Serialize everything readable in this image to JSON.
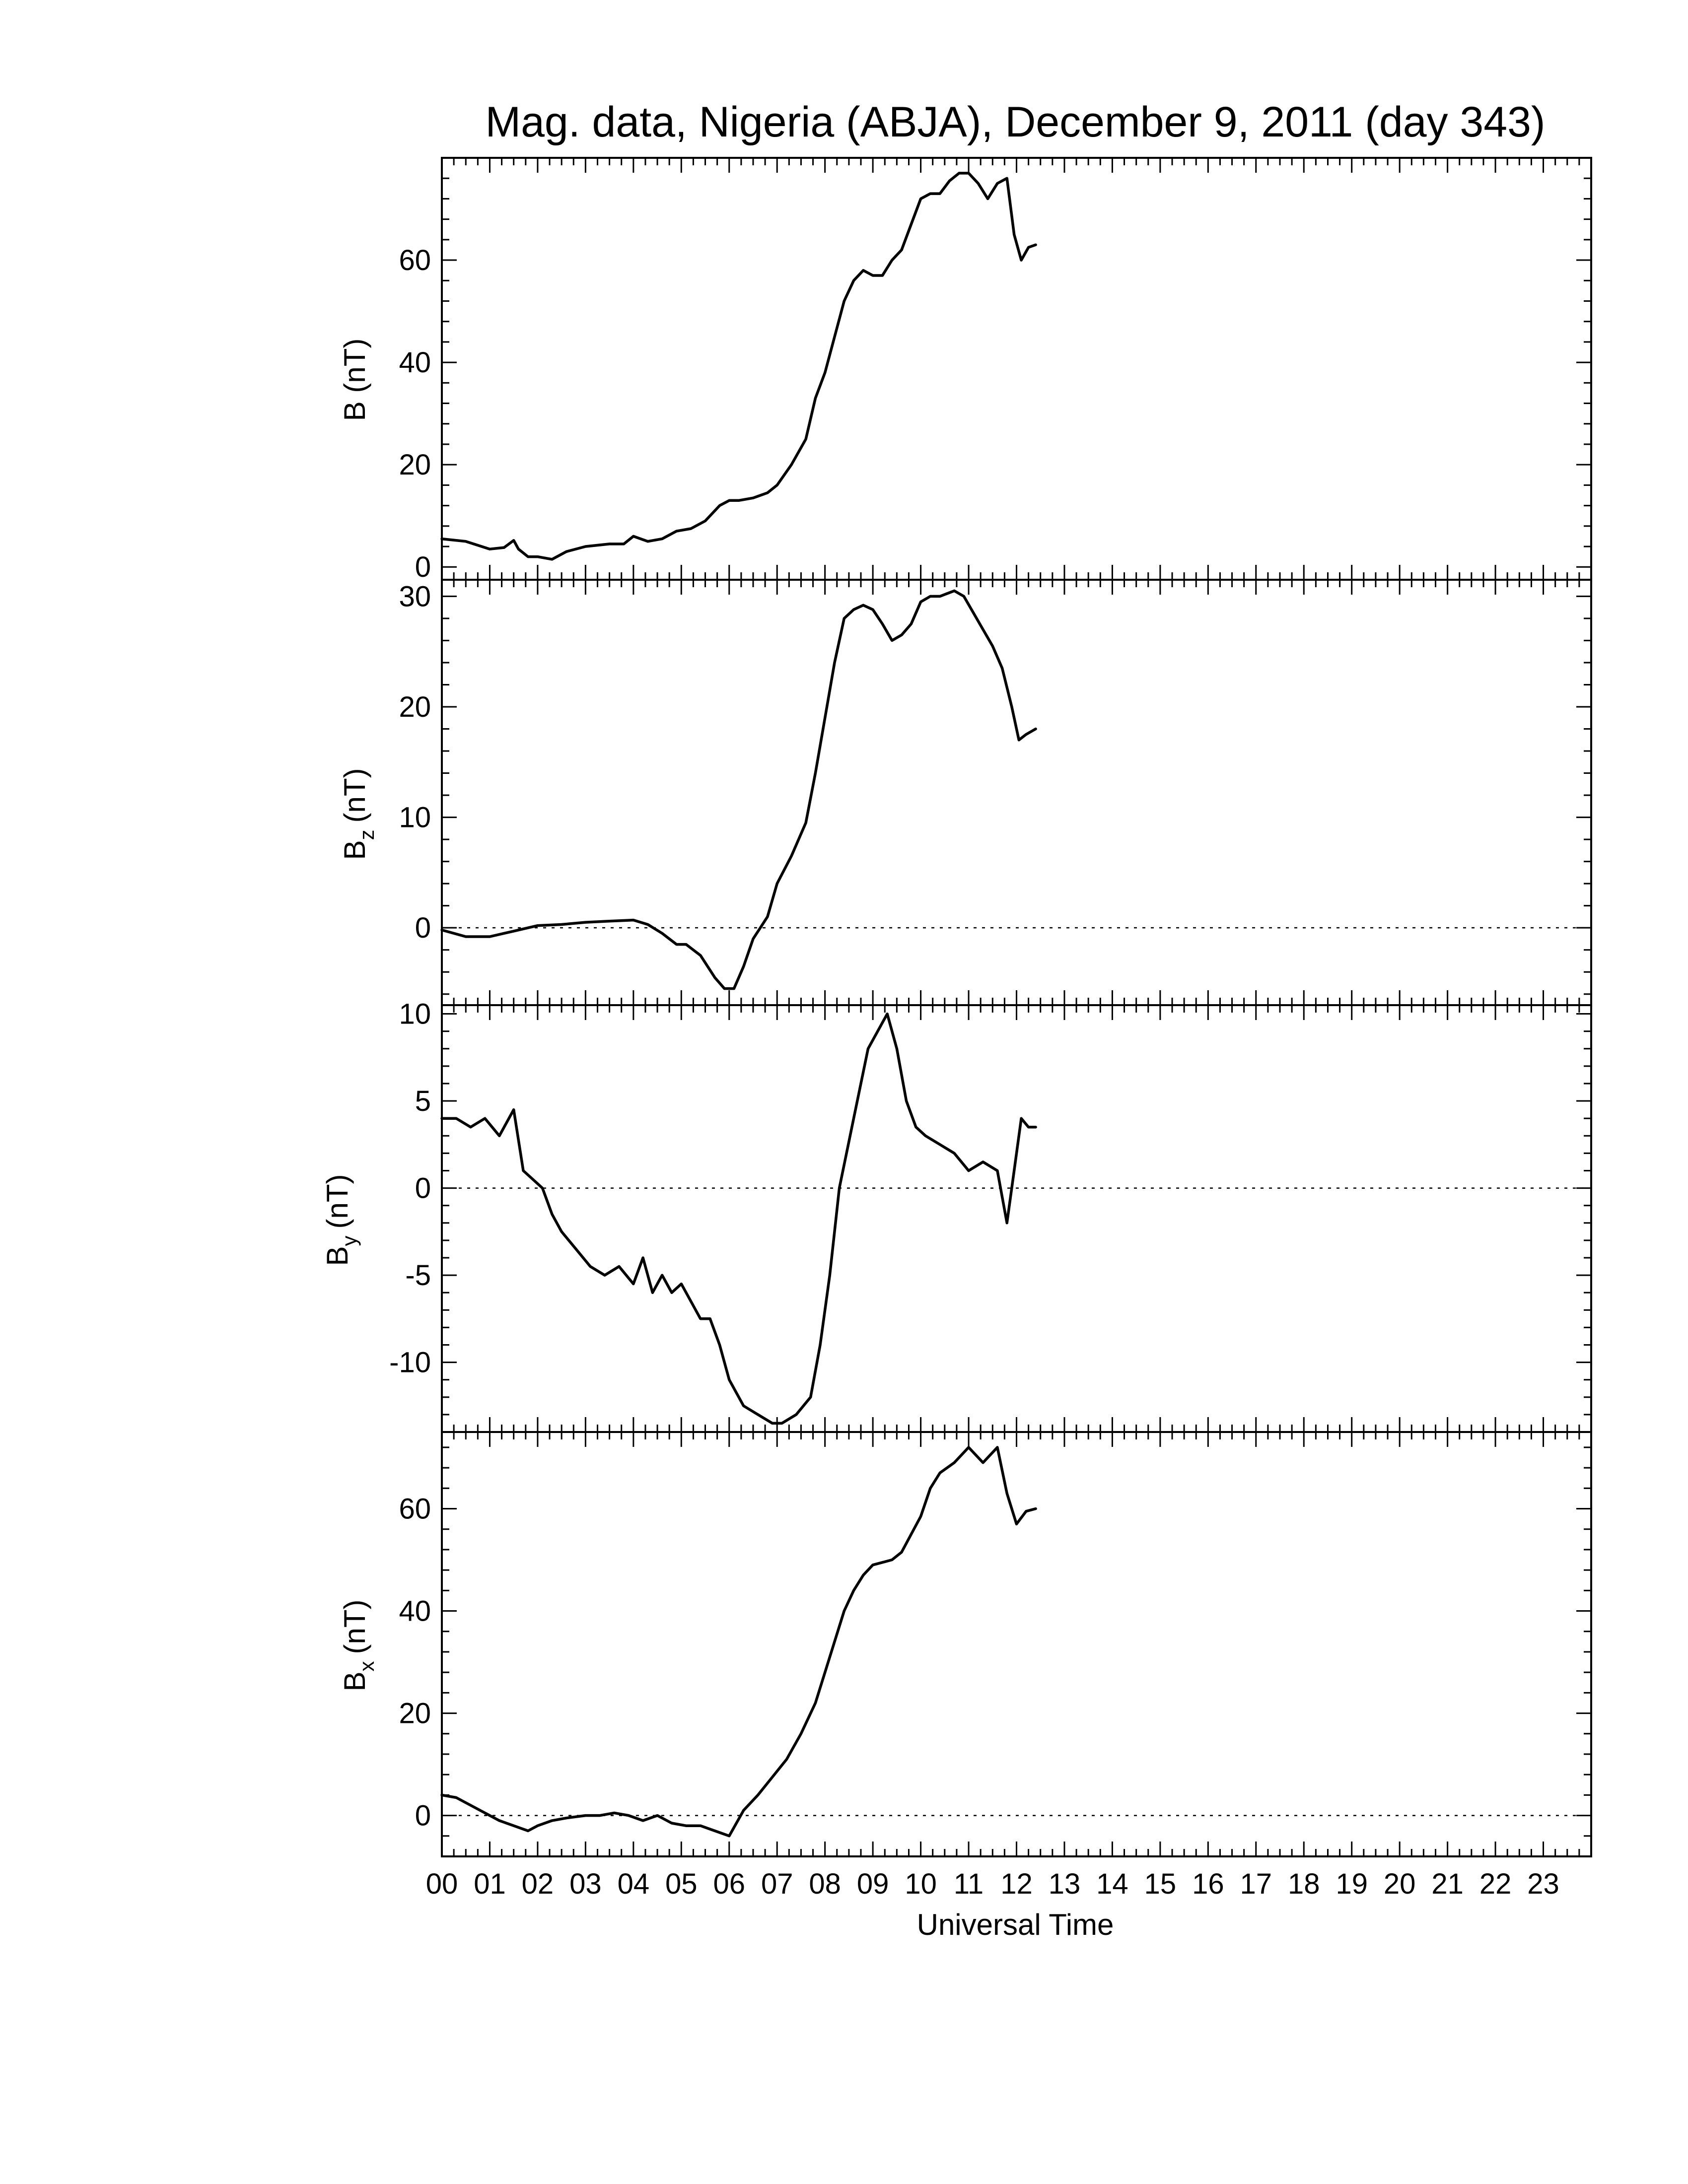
{
  "title": "Mag. data, Nigeria (ABJA), December 9, 2011 (day 343)",
  "chart_data": [
    {
      "type": "line",
      "ylabel": "B (nT)",
      "ylim": [
        -2.5,
        80
      ],
      "yticks": [
        0,
        20,
        40,
        60
      ],
      "reference_line": null,
      "series": [
        {
          "x": [
            0,
            0.5,
            1.0,
            1.3,
            1.5,
            1.6,
            1.8,
            2.0,
            2.3,
            2.6,
            3.0,
            3.5,
            3.8,
            4.0,
            4.3,
            4.6,
            4.9,
            5.2,
            5.5,
            5.8,
            6.0,
            6.2,
            6.5,
            6.8,
            7.0,
            7.3,
            7.6,
            7.8,
            8.0,
            8.2,
            8.4,
            8.6,
            8.8,
            9.0,
            9.2,
            9.4,
            9.6,
            9.8,
            10.0,
            10.2,
            10.4,
            10.6,
            10.8,
            11.0,
            11.2,
            11.4,
            11.6,
            11.8,
            11.95,
            12.1,
            12.25,
            12.4
          ],
          "y": [
            5.5,
            5.0,
            3.5,
            3.8,
            5.2,
            3.5,
            2.0,
            2.0,
            1.5,
            3.0,
            4.0,
            4.5,
            4.5,
            6.0,
            5.0,
            5.5,
            7.0,
            7.5,
            9.0,
            12.0,
            13.0,
            13.0,
            13.5,
            14.5,
            16.0,
            20.0,
            25.0,
            33.0,
            38.0,
            45.0,
            52.0,
            56.0,
            58.0,
            57.0,
            57.0,
            60.0,
            62.0,
            67.0,
            72.0,
            73.0,
            73.0,
            75.5,
            77.0,
            77.0,
            75.0,
            72.0,
            75.0,
            76.0,
            65.0,
            60.0,
            62.5,
            63.0
          ]
        }
      ]
    },
    {
      "type": "line",
      "ylabel": "B",
      "ylabel_sub": "z",
      "ylabel_unit": "(nT)",
      "ylim": [
        -7,
        31.5
      ],
      "yticks": [
        0,
        10,
        20,
        30
      ],
      "reference_line": 0,
      "series": [
        {
          "x": [
            0,
            0.5,
            1.0,
            1.5,
            2.0,
            2.5,
            3.0,
            3.5,
            4.0,
            4.3,
            4.6,
            4.9,
            5.1,
            5.4,
            5.7,
            5.9,
            6.1,
            6.3,
            6.5,
            6.8,
            7.0,
            7.3,
            7.6,
            7.8,
            8.0,
            8.2,
            8.4,
            8.6,
            8.8,
            9.0,
            9.2,
            9.4,
            9.6,
            9.8,
            10.0,
            10.2,
            10.4,
            10.7,
            10.9,
            11.1,
            11.3,
            11.5,
            11.7,
            11.9,
            12.05,
            12.2,
            12.4
          ],
          "y": [
            -0.2,
            -0.8,
            -0.8,
            -0.3,
            0.2,
            0.3,
            0.5,
            0.6,
            0.7,
            0.3,
            -0.5,
            -1.5,
            -1.5,
            -2.5,
            -4.5,
            -5.5,
            -5.5,
            -3.5,
            -1.0,
            1.0,
            4.0,
            6.5,
            9.5,
            14.0,
            19.0,
            24.0,
            28.0,
            28.8,
            29.2,
            28.8,
            27.5,
            26.0,
            26.5,
            27.5,
            29.5,
            30.0,
            30.0,
            30.5,
            30.0,
            28.5,
            27.0,
            25.5,
            23.5,
            20.0,
            17.0,
            17.5,
            18.0
          ]
        }
      ]
    },
    {
      "type": "line",
      "ylabel": "B",
      "ylabel_sub": "y",
      "ylabel_unit": "(nT)",
      "ylim": [
        -14,
        10.5
      ],
      "yticks": [
        -10,
        -5,
        0,
        5,
        10
      ],
      "reference_line": 0,
      "series": [
        {
          "x": [
            0,
            0.3,
            0.6,
            0.9,
            1.2,
            1.5,
            1.7,
            1.9,
            2.1,
            2.3,
            2.5,
            2.8,
            3.1,
            3.4,
            3.7,
            4.0,
            4.2,
            4.4,
            4.6,
            4.8,
            5.0,
            5.2,
            5.4,
            5.6,
            5.8,
            6.0,
            6.3,
            6.6,
            6.9,
            7.1,
            7.4,
            7.7,
            7.9,
            8.1,
            8.3,
            8.6,
            8.9,
            9.1,
            9.3,
            9.5,
            9.7,
            9.9,
            10.1,
            10.4,
            10.7,
            11.0,
            11.3,
            11.6,
            11.8,
            11.95,
            12.1,
            12.25,
            12.4
          ],
          "y": [
            4.0,
            4.0,
            3.5,
            4.0,
            3.0,
            4.5,
            1.0,
            0.5,
            0.0,
            -1.5,
            -2.5,
            -3.5,
            -4.5,
            -5.0,
            -4.5,
            -5.5,
            -4.0,
            -6.0,
            -5.0,
            -6.0,
            -5.5,
            -6.5,
            -7.5,
            -7.5,
            -9.0,
            -11.0,
            -12.5,
            -13.0,
            -13.5,
            -13.5,
            -13.0,
            -12.0,
            -9.0,
            -5.0,
            0.0,
            4.0,
            8.0,
            9.0,
            10.0,
            8.0,
            5.0,
            3.5,
            3.0,
            2.5,
            2.0,
            1.0,
            1.5,
            1.0,
            -2.0,
            1.0,
            4.0,
            3.5,
            3.5
          ]
        }
      ]
    },
    {
      "type": "line",
      "ylabel": "B",
      "ylabel_sub": "x",
      "ylabel_unit": "(nT)",
      "ylim": [
        -8,
        75
      ],
      "yticks": [
        0,
        20,
        40,
        60
      ],
      "reference_line": 0,
      "series": [
        {
          "x": [
            0,
            0.3,
            0.6,
            0.9,
            1.2,
            1.5,
            1.8,
            2.0,
            2.3,
            2.6,
            3.0,
            3.3,
            3.6,
            3.9,
            4.2,
            4.5,
            4.8,
            5.1,
            5.4,
            5.7,
            6.0,
            6.3,
            6.6,
            6.9,
            7.2,
            7.5,
            7.8,
            8.0,
            8.2,
            8.4,
            8.6,
            8.8,
            9.0,
            9.2,
            9.4,
            9.6,
            9.8,
            10.0,
            10.2,
            10.4,
            10.7,
            11.0,
            11.3,
            11.6,
            11.8,
            12.0,
            12.2,
            12.4
          ],
          "y": [
            4.0,
            3.5,
            2.0,
            0.5,
            -1.0,
            -2.0,
            -3.0,
            -2.0,
            -1.0,
            -0.5,
            0.0,
            0.0,
            0.5,
            0.0,
            -1.0,
            0.0,
            -1.5,
            -2.0,
            -2.0,
            -3.0,
            -4.0,
            1.0,
            4.0,
            7.5,
            11.0,
            16.0,
            22.0,
            28.0,
            34.0,
            40.0,
            44.0,
            47.0,
            49.0,
            49.5,
            50.0,
            51.5,
            55.0,
            58.5,
            64.0,
            67.0,
            69.0,
            72.0,
            69.0,
            72.0,
            63.0,
            57.0,
            59.5,
            60.0
          ]
        }
      ]
    }
  ],
  "xaxis": {
    "xlabel": "Universal Time",
    "xlim": [
      0,
      24
    ],
    "tick_labels": [
      "00",
      "01",
      "02",
      "03",
      "04",
      "05",
      "06",
      "07",
      "08",
      "09",
      "10",
      "11",
      "12",
      "13",
      "14",
      "15",
      "16",
      "17",
      "18",
      "19",
      "20",
      "21",
      "22",
      "23"
    ]
  }
}
